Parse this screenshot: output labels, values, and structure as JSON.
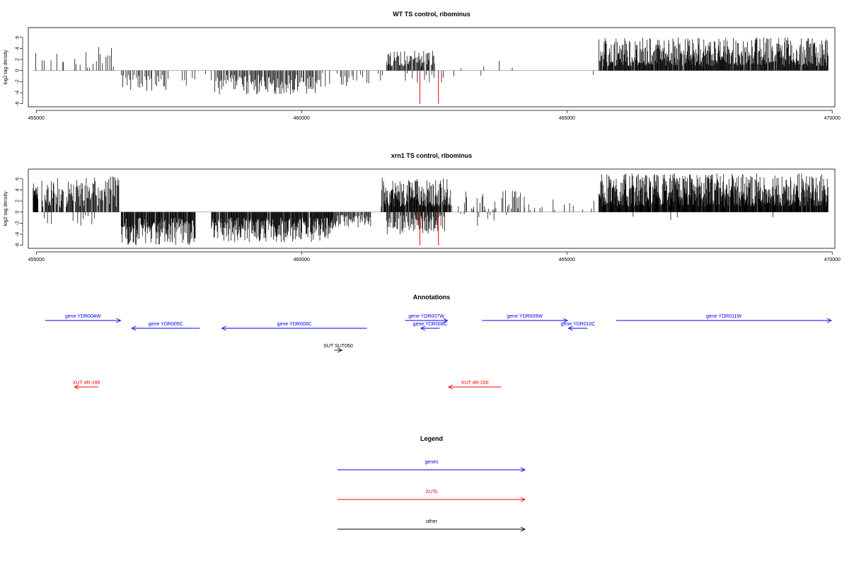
{
  "chart_data": [
    {
      "type": "bar",
      "title": "WT TS control, ribominus",
      "ylabel": "log2 tag density",
      "xlim": [
        454850,
        470050
      ],
      "ylim": [
        -6.3,
        7.5
      ],
      "xticks": [
        455000,
        460000,
        465000,
        470000
      ],
      "yticks": [
        -6,
        -4,
        -2,
        0,
        2,
        4,
        6
      ],
      "ytick_labels": [
        "-6",
        "-4",
        "-2",
        "0",
        "2",
        "4",
        "6"
      ],
      "colors": {
        "signal": "#000000",
        "highlight": "#ff0000",
        "baseline": "#888888"
      },
      "highlights": [
        {
          "x": 462230,
          "value": -6,
          "color": "#ff0000"
        },
        {
          "x": 462580,
          "value": -6,
          "color": "#ff0000"
        }
      ],
      "segments": [
        {
          "x": [
            454940,
            455500
          ],
          "sign": 1,
          "min": 0.5,
          "max": 3.8,
          "step": 40,
          "density": 0.45
        },
        {
          "x": [
            455500,
            456580
          ],
          "sign": 1,
          "min": 0.5,
          "max": 4.3,
          "step": 35,
          "density": 0.45
        },
        {
          "x": [
            456600,
            457500
          ],
          "sign": -1,
          "min": 0.8,
          "max": 3.8,
          "step": 22,
          "density": 0.75
        },
        {
          "x": [
            457500,
            458200
          ],
          "sign": -1,
          "min": 0.5,
          "max": 3.0,
          "step": 40,
          "density": 0.4
        },
        {
          "x": [
            458300,
            460300
          ],
          "sign": -1,
          "min": 0.8,
          "max": 4.4,
          "step": 16,
          "density": 0.9
        },
        {
          "x": [
            460300,
            461300
          ],
          "sign": -1,
          "min": 0.4,
          "max": 3.0,
          "step": 28,
          "density": 0.55
        },
        {
          "x": [
            461400,
            461700
          ],
          "sign": -1,
          "min": 0.4,
          "max": 2.4,
          "step": 40,
          "density": 0.4
        },
        {
          "x": [
            461600,
            462500
          ],
          "sign": 1,
          "min": 0.8,
          "max": 3.6,
          "step": 12,
          "density": 0.9
        },
        {
          "x": [
            461900,
            462700
          ],
          "sign": -1,
          "min": 0.4,
          "max": 2.2,
          "step": 45,
          "density": 0.4
        },
        {
          "x": [
            462700,
            463500
          ],
          "sign": 1,
          "min": 0.4,
          "max": 2.0,
          "step": 60,
          "density": 0.25
        },
        {
          "x": [
            462800,
            463400
          ],
          "sign": -1,
          "min": 0.3,
          "max": 1.2,
          "step": 70,
          "density": 0.25
        },
        {
          "x": [
            463700,
            464500
          ],
          "sign": 1,
          "min": 0.4,
          "max": 3.4,
          "step": 90,
          "density": 0.35
        },
        {
          "x": [
            465500,
            465600
          ],
          "sign": -1,
          "min": 0.5,
          "max": 1.0,
          "step": 40,
          "density": 0.5
        },
        {
          "x": [
            465600,
            469920
          ],
          "sign": 1,
          "min": 0.8,
          "max": 6.0,
          "step": 9,
          "density": 0.95
        }
      ]
    },
    {
      "type": "bar",
      "title": "xrn1 TS control, ribominus",
      "ylabel": "log2 tag density",
      "xlim": [
        454850,
        470050
      ],
      "ylim": [
        -6.3,
        7.5
      ],
      "xticks": [
        455000,
        460000,
        465000,
        470000
      ],
      "yticks": [
        -6,
        -4,
        -2,
        0,
        2,
        4,
        6
      ],
      "ytick_labels": [
        "-6",
        "-4",
        "-2",
        "0",
        "2",
        "4",
        "6"
      ],
      "colors": {
        "signal": "#000000",
        "highlight": "#ff0000",
        "baseline": "#888888"
      },
      "highlights": [
        {
          "x": 462230,
          "value": -6,
          "color": "#ff0000"
        },
        {
          "x": 462580,
          "value": -6,
          "color": "#ff0000"
        }
      ],
      "segments": [
        {
          "x": [
            454940,
            455030
          ],
          "sign": 1,
          "min": 2.0,
          "max": 5.4,
          "step": 6,
          "density": 1.0
        },
        {
          "x": [
            455100,
            456580
          ],
          "sign": 1,
          "min": 0.8,
          "max": 6.5,
          "step": 12,
          "density": 0.9
        },
        {
          "x": [
            455100,
            456200
          ],
          "sign": -1,
          "min": 0.4,
          "max": 2.6,
          "step": 45,
          "density": 0.45
        },
        {
          "x": [
            456600,
            458000
          ],
          "sign": -1,
          "min": 1.0,
          "max": 6.0,
          "step": 9,
          "density": 0.95
        },
        {
          "x": [
            458300,
            460600
          ],
          "sign": -1,
          "min": 1.0,
          "max": 5.6,
          "step": 9,
          "density": 0.95
        },
        {
          "x": [
            460600,
            461300
          ],
          "sign": -1,
          "min": 0.5,
          "max": 3.0,
          "step": 14,
          "density": 0.85
        },
        {
          "x": [
            461500,
            462800
          ],
          "sign": 1,
          "min": 1.0,
          "max": 6.2,
          "step": 8,
          "density": 0.95
        },
        {
          "x": [
            461600,
            462700
          ],
          "sign": -1,
          "min": 0.6,
          "max": 4.0,
          "step": 12,
          "density": 0.8
        },
        {
          "x": [
            462800,
            464200
          ],
          "sign": 1,
          "min": 0.4,
          "max": 4.0,
          "step": 22,
          "density": 0.6
        },
        {
          "x": [
            462900,
            463900
          ],
          "sign": -1,
          "min": 0.3,
          "max": 2.5,
          "step": 40,
          "density": 0.4
        },
        {
          "x": [
            464200,
            465600
          ],
          "sign": 1,
          "min": 0.3,
          "max": 2.5,
          "step": 35,
          "density": 0.45
        },
        {
          "x": [
            465600,
            469920
          ],
          "sign": 1,
          "min": 1.0,
          "max": 7.0,
          "step": 7,
          "density": 0.97
        },
        {
          "x": [
            465800,
            469500
          ],
          "sign": -1,
          "min": 0.3,
          "max": 1.6,
          "step": 180,
          "density": 0.3
        }
      ]
    }
  ],
  "annotations": {
    "title": "Annotations",
    "items": [
      {
        "label": "gene YDR004W",
        "start": 455170,
        "end": 456590,
        "strand": "+",
        "color": "#0000ff"
      },
      {
        "label": "gene YDR005C",
        "start": 456800,
        "end": 458080,
        "strand": "-",
        "color": "#0000ff"
      },
      {
        "label": "gene YDR006C",
        "start": 458500,
        "end": 461230,
        "strand": "-",
        "color": "#0000ff"
      },
      {
        "label": "gene YDR007W",
        "start": 461950,
        "end": 462750,
        "strand": "+",
        "color": "#0000ff"
      },
      {
        "label": "gene YDR008C",
        "start": 462250,
        "end": 462600,
        "strand": "-",
        "color": "#0000ff"
      },
      {
        "label": "gene YDR009W",
        "start": 463400,
        "end": 465010,
        "strand": "+",
        "color": "#0000ff"
      },
      {
        "label": "gene YDR010C",
        "start": 465030,
        "end": 465390,
        "strand": "-",
        "color": "#0000ff"
      },
      {
        "label": "gene YDR011W",
        "start": 465930,
        "end": 470440,
        "strand": "+",
        "color": "#0000ff"
      },
      {
        "label": "SUT SUT050",
        "start": 460620,
        "end": 460760,
        "strand": "+",
        "color": "#000000"
      },
      {
        "label": "XUT 4R-195",
        "start": 455720,
        "end": 456170,
        "strand": "-",
        "color": "#ff0000"
      },
      {
        "label": "XUT 4R-200",
        "start": 462770,
        "end": 463760,
        "strand": "-",
        "color": "#ff0000"
      }
    ]
  },
  "legend": {
    "title": "Legend",
    "items": [
      {
        "label": "genes",
        "color": "#0000ff"
      },
      {
        "label": "XUTs",
        "color": "#ff0000"
      },
      {
        "label": "other",
        "color": "#000000"
      }
    ]
  }
}
